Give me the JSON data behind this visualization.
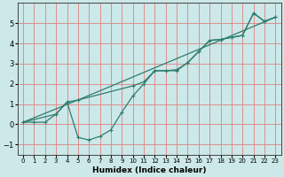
{
  "xlabel": "Humidex (Indice chaleur)",
  "bg_color": "#cce8e8",
  "grid_color": "#e08080",
  "line_color": "#2e7d6e",
  "xlim": [
    -0.5,
    23.5
  ],
  "ylim": [
    -1.5,
    6.0
  ],
  "xticks": [
    0,
    1,
    2,
    3,
    4,
    5,
    6,
    7,
    8,
    9,
    10,
    11,
    12,
    13,
    14,
    15,
    16,
    17,
    18,
    19,
    20,
    21,
    22,
    23
  ],
  "yticks": [
    -1,
    0,
    1,
    2,
    3,
    4,
    5
  ],
  "line1_x": [
    0,
    1,
    2,
    3,
    4,
    5,
    10,
    11,
    12,
    13,
    14,
    15,
    16,
    17,
    18,
    19,
    20,
    21,
    22,
    23
  ],
  "line1_y": [
    0.1,
    0.1,
    0.1,
    0.5,
    1.1,
    1.2,
    1.9,
    2.1,
    2.65,
    2.65,
    2.7,
    3.05,
    3.6,
    4.15,
    4.2,
    4.3,
    4.4,
    5.5,
    5.1,
    5.3
  ],
  "line2_x": [
    0,
    5,
    23
  ],
  "line2_y": [
    0.1,
    1.2,
    5.3
  ],
  "line3_x": [
    0,
    3,
    4,
    5,
    6,
    7,
    8,
    9,
    10,
    11,
    12,
    13,
    14,
    15,
    16,
    17,
    18,
    19,
    20,
    21,
    22,
    23
  ],
  "line3_y": [
    0.1,
    0.5,
    1.1,
    -0.65,
    -0.78,
    -0.6,
    -0.28,
    0.6,
    1.4,
    2.0,
    2.65,
    2.65,
    2.65,
    3.05,
    3.6,
    4.15,
    4.2,
    4.3,
    4.4,
    5.5,
    5.1,
    5.3
  ]
}
